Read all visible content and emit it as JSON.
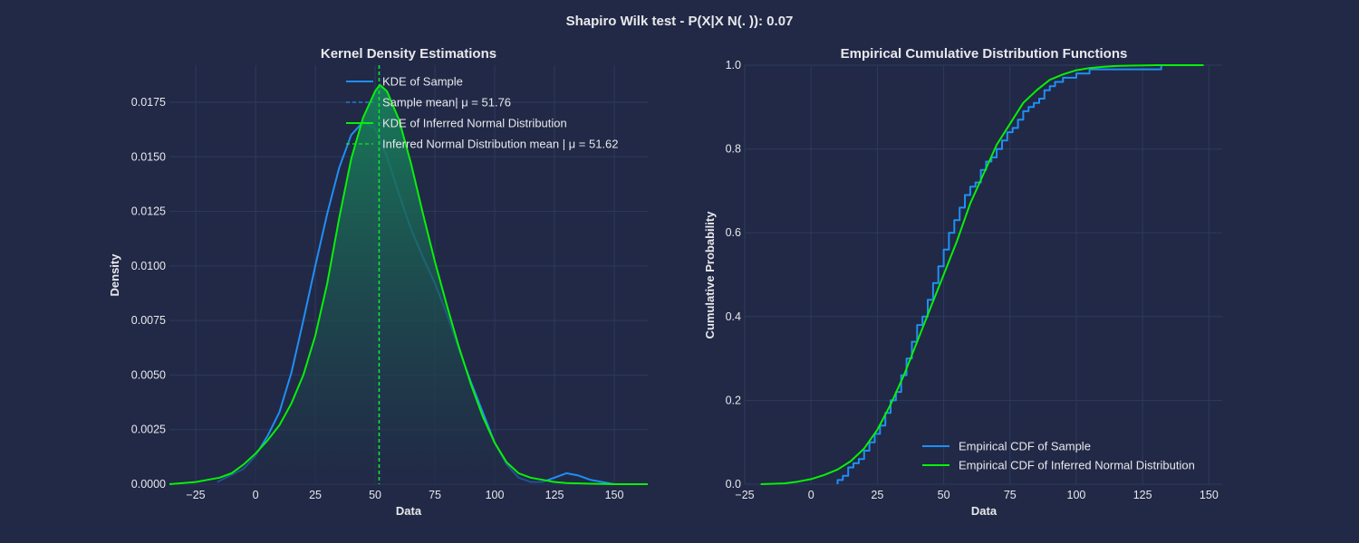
{
  "figure": {
    "suptitle": "Shapiro Wilk test - P(X|X N(. )): 0.07",
    "background": "#212946",
    "grid_color": "#2e3a5c",
    "text_color": "#e8e8ec"
  },
  "colors": {
    "sample": "#1f8ff5",
    "normal": "#08f008",
    "fill_top": "#17805a",
    "fill_bottom": "#212946"
  },
  "chart_data": [
    {
      "type": "line",
      "title": "Kernel Density Estimations",
      "xlabel": "Data",
      "ylabel": "Density",
      "xlim": [
        -36,
        164
      ],
      "ylim": [
        0,
        0.0192
      ],
      "xticks": [
        -25,
        0,
        25,
        50,
        75,
        100,
        125,
        150
      ],
      "yticks": [
        0.0,
        0.0025,
        0.005,
        0.0075,
        0.01,
        0.0125,
        0.015,
        0.0175
      ],
      "ytick_labels": [
        "0.0000",
        "0.0025",
        "0.0050",
        "0.0075",
        "0.0100",
        "0.0125",
        "0.0150",
        "0.0175"
      ],
      "grid": true,
      "legend_position": "top-center",
      "legend": [
        {
          "label": "KDE of Sample",
          "series": "sample",
          "style": "solid"
        },
        {
          "label": "Sample mean| μ = 51.76",
          "series": "sample",
          "style": "dashed"
        },
        {
          "label": "KDE of Inferred Normal Distribution",
          "series": "normal",
          "style": "solid"
        },
        {
          "label": "Inferred Normal Distribution mean | μ = 51.62",
          "series": "normal",
          "style": "dashed"
        }
      ],
      "series": [
        {
          "name": "KDE of Sample",
          "color_key": "sample",
          "x": [
            -16,
            -5,
            0,
            5,
            10,
            15,
            20,
            25,
            30,
            35,
            40,
            45,
            50,
            55,
            60,
            65,
            70,
            75,
            80,
            85,
            90,
            95,
            100,
            105,
            110,
            115,
            120,
            125,
            130,
            135,
            140,
            145,
            150,
            155
          ],
          "y": [
            0.0001,
            0.0007,
            0.0013,
            0.0022,
            0.0033,
            0.0051,
            0.0075,
            0.01,
            0.0124,
            0.0145,
            0.016,
            0.0166,
            0.0163,
            0.015,
            0.0133,
            0.0117,
            0.0104,
            0.0092,
            0.0078,
            0.0062,
            0.0047,
            0.0033,
            0.0019,
            0.0009,
            0.0003,
            0.0001,
            0.0001,
            0.0003,
            0.0005,
            0.0004,
            0.0002,
            0.0001,
            0.0,
            0.0
          ]
        },
        {
          "name": "KDE of Inferred Normal Distribution",
          "color_key": "normal",
          "x": [
            -36,
            -25,
            -20,
            -15,
            -10,
            -5,
            0,
            5,
            10,
            15,
            20,
            25,
            30,
            35,
            40,
            45,
            50,
            52,
            55,
            60,
            65,
            70,
            75,
            80,
            85,
            90,
            95,
            100,
            105,
            110,
            115,
            120,
            125,
            130,
            140,
            150,
            164
          ],
          "y": [
            0.0,
            0.0001,
            0.0002,
            0.0003,
            0.0005,
            0.0009,
            0.0014,
            0.002,
            0.0027,
            0.0037,
            0.005,
            0.0068,
            0.0092,
            0.0122,
            0.0149,
            0.0168,
            0.018,
            0.0183,
            0.018,
            0.0167,
            0.0147,
            0.0124,
            0.0102,
            0.0082,
            0.0063,
            0.0046,
            0.0031,
            0.0019,
            0.001,
            0.0005,
            0.0003,
            0.0002,
            0.0001,
            5e-05,
            2e-05,
            0.0,
            0.0
          ]
        }
      ],
      "vlines": [
        {
          "name": "Sample mean",
          "x": 51.76,
          "color_key": "sample"
        },
        {
          "name": "Inferred Normal Distribution mean",
          "x": 51.62,
          "color_key": "normal"
        }
      ]
    },
    {
      "type": "line",
      "title": "Empirical Cumulative Distribution Functions",
      "xlabel": "Data",
      "ylabel": "Cumulative Probability",
      "xlim": [
        -25,
        155
      ],
      "ylim": [
        0,
        1.0
      ],
      "xticks": [
        -25,
        0,
        25,
        50,
        75,
        100,
        125,
        150
      ],
      "yticks": [
        0.0,
        0.2,
        0.4,
        0.6,
        0.8,
        1.0
      ],
      "ytick_labels": [
        "0.0",
        "0.2",
        "0.4",
        "0.6",
        "0.8",
        "1.0"
      ],
      "grid": true,
      "legend_position": "lower-right",
      "legend": [
        {
          "label": "Empirical CDF of Sample",
          "series": "sample",
          "style": "solid"
        },
        {
          "label": "Empirical CDF of Inferred Normal Distribution",
          "series": "normal",
          "style": "solid"
        }
      ],
      "series": [
        {
          "name": "Empirical CDF of Sample",
          "color_key": "sample",
          "step": true,
          "x": [
            10,
            12,
            14,
            16,
            18,
            20,
            22,
            24,
            26,
            28,
            30,
            32,
            34,
            36,
            38,
            40,
            42,
            44,
            46,
            48,
            50,
            52,
            54,
            56,
            58,
            60,
            62,
            64,
            66,
            68,
            70,
            72,
            74,
            76,
            78,
            80,
            82,
            84,
            86,
            88,
            90,
            92,
            95,
            100,
            105,
            132
          ],
          "y": [
            0.01,
            0.02,
            0.04,
            0.05,
            0.06,
            0.08,
            0.1,
            0.12,
            0.14,
            0.17,
            0.2,
            0.22,
            0.26,
            0.3,
            0.34,
            0.38,
            0.4,
            0.44,
            0.48,
            0.52,
            0.56,
            0.6,
            0.63,
            0.66,
            0.69,
            0.71,
            0.72,
            0.75,
            0.77,
            0.78,
            0.8,
            0.82,
            0.84,
            0.85,
            0.87,
            0.89,
            0.9,
            0.91,
            0.92,
            0.94,
            0.95,
            0.96,
            0.97,
            0.98,
            0.99,
            1.0
          ]
        },
        {
          "name": "Empirical CDF of Inferred Normal Distribution",
          "color_key": "normal",
          "step": false,
          "x": [
            -19,
            -10,
            -5,
            0,
            5,
            10,
            15,
            20,
            25,
            30,
            35,
            40,
            45,
            50,
            55,
            60,
            65,
            70,
            75,
            80,
            85,
            90,
            95,
            100,
            105,
            110,
            115,
            120,
            130,
            148
          ],
          "y": [
            0.0,
            0.002,
            0.006,
            0.012,
            0.022,
            0.035,
            0.055,
            0.085,
            0.13,
            0.19,
            0.26,
            0.34,
            0.42,
            0.5,
            0.58,
            0.67,
            0.74,
            0.81,
            0.86,
            0.91,
            0.94,
            0.965,
            0.978,
            0.988,
            0.993,
            0.996,
            0.998,
            0.999,
            1.0,
            1.0
          ]
        }
      ]
    }
  ]
}
